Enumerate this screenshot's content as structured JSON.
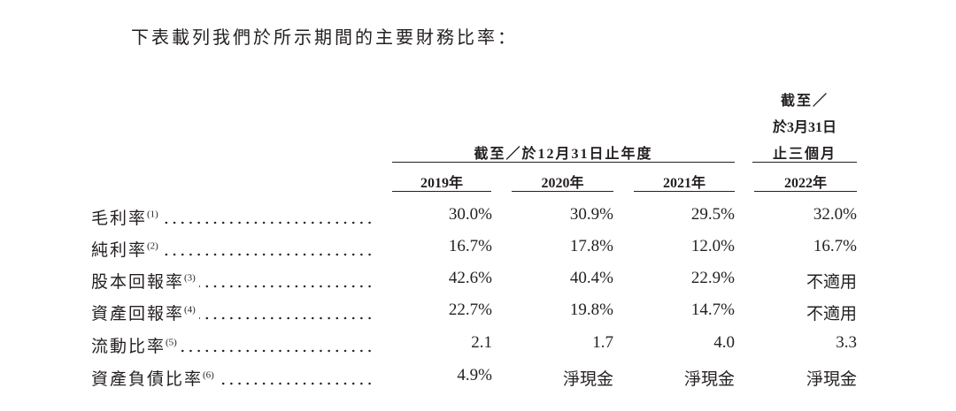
{
  "intro": "下表載列我們於所示期間的主要財務比率：",
  "header": {
    "year_group": "截至／於12月31日止年度",
    "quarter_group": [
      "截至／",
      "於3月31日",
      "止三個月"
    ],
    "columns": [
      "2019年",
      "2020年",
      "2021年",
      "2022年"
    ]
  },
  "table": {
    "rows": [
      {
        "label": "毛利率",
        "note": "(1)",
        "values": [
          "30.0%",
          "30.9%",
          "29.5%",
          "32.0%"
        ]
      },
      {
        "label": "純利率",
        "note": "(2)",
        "values": [
          "16.7%",
          "17.8%",
          "12.0%",
          "16.7%"
        ]
      },
      {
        "label": "股本回報率",
        "note": "(3)",
        "values": [
          "42.6%",
          "40.4%",
          "22.9%",
          "不適用"
        ]
      },
      {
        "label": "資產回報率",
        "note": "(4)",
        "values": [
          "22.7%",
          "19.8%",
          "14.7%",
          "不適用"
        ]
      },
      {
        "label": "流動比率",
        "note": "(5)",
        "values": [
          "2.1",
          "1.7",
          "4.0",
          "3.3"
        ]
      },
      {
        "label": "資產負債比率",
        "note": "(6)",
        "values": [
          "4.9%",
          "淨現金",
          "淨現金",
          "淨現金"
        ]
      }
    ]
  }
}
